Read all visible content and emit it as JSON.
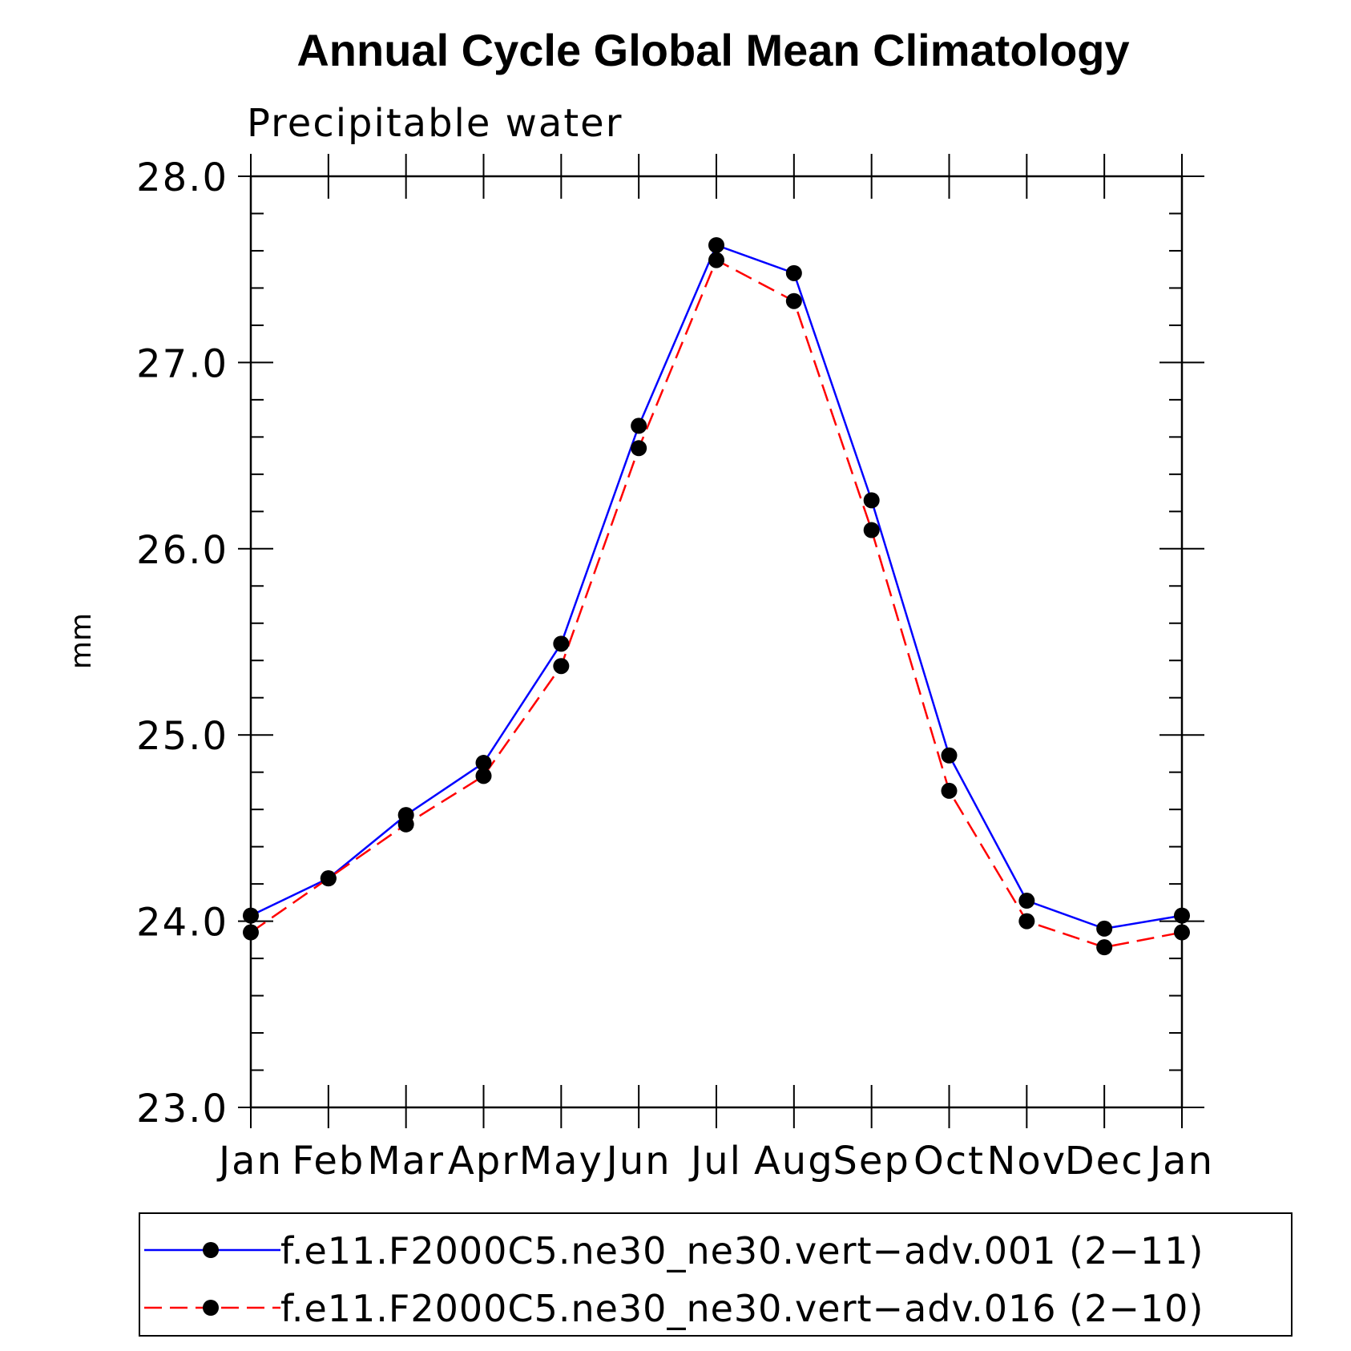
{
  "chart_data": {
    "type": "line",
    "title": "Annual Cycle Global Mean Climatology",
    "subtitle": "Precipitable water",
    "xlabel": "",
    "ylabel": "mm",
    "categories": [
      "Jan",
      "Feb",
      "Mar",
      "Apr",
      "May",
      "Jun",
      "Jul",
      "Aug",
      "Sep",
      "Oct",
      "Nov",
      "Dec",
      "Jan"
    ],
    "ylim": [
      23.0,
      28.0
    ],
    "yticks": [
      "23.0",
      "24.0",
      "25.0",
      "26.0",
      "27.0",
      "28.0"
    ],
    "grid": false,
    "legend_position": "bottom",
    "series": [
      {
        "name": "f.e11.F2000C5.ne30_ne30.vert−adv.001 (2−11)",
        "color": "#0000ff",
        "style": "solid",
        "marker": "filled-circle",
        "values": [
          24.03,
          24.23,
          24.57,
          24.85,
          25.49,
          26.66,
          27.63,
          27.48,
          26.26,
          24.89,
          24.11,
          23.96,
          24.03
        ]
      },
      {
        "name": "f.e11.F2000C5.ne30_ne30.vert−adv.016 (2−10)",
        "color": "#ff0000",
        "style": "dashed",
        "marker": "filled-circle",
        "values": [
          23.94,
          24.23,
          24.52,
          24.78,
          25.37,
          26.54,
          27.55,
          27.33,
          26.1,
          24.7,
          24.0,
          23.86,
          23.94
        ]
      }
    ]
  }
}
